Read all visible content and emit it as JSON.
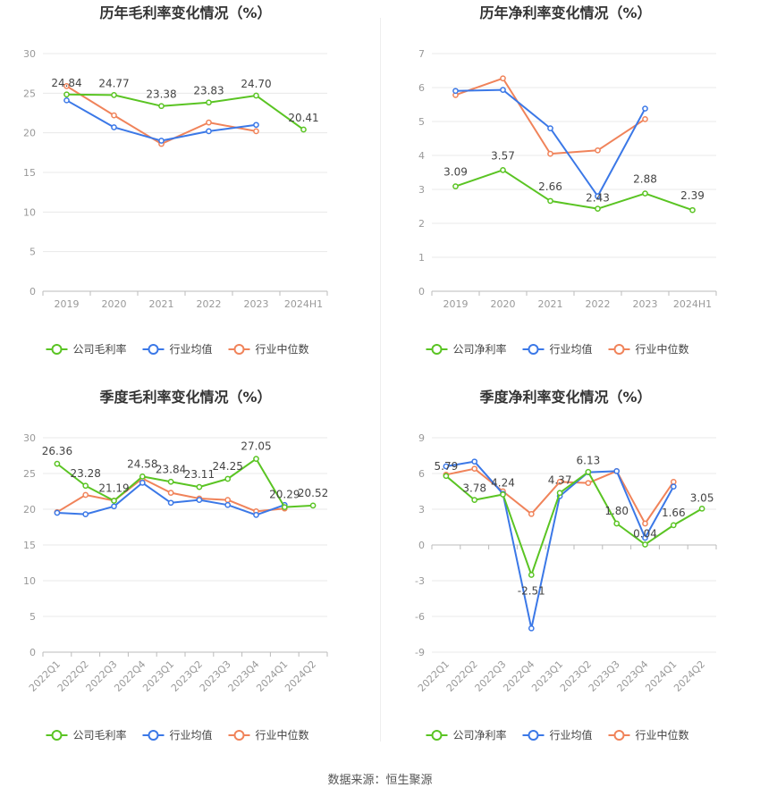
{
  "source": "数据来源：恒生聚源",
  "colors": {
    "company": "#5ac423",
    "avg": "#3b78e7",
    "median": "#f0835a",
    "grid": "#e8e8e8",
    "axis": "#999999",
    "text": "#444444",
    "title": "#333333"
  },
  "chart_data": [
    {
      "type": "line",
      "title": "历年毛利率变化情况（%）",
      "categories": [
        "2019",
        "2020",
        "2021",
        "2022",
        "2023",
        "2024H1"
      ],
      "ylim": [
        0,
        30
      ],
      "yticks": [
        0,
        5,
        10,
        15,
        20,
        25,
        30
      ],
      "series": [
        {
          "name": "公司毛利率",
          "key": "company",
          "values": [
            24.84,
            24.77,
            23.38,
            23.83,
            24.7,
            20.41
          ],
          "labels": true
        },
        {
          "name": "行业均值",
          "key": "avg",
          "values": [
            24.1,
            20.7,
            19.0,
            20.2,
            21.0,
            null
          ],
          "labels": false
        },
        {
          "name": "行业中位数",
          "key": "median",
          "values": [
            25.9,
            22.2,
            18.6,
            21.3,
            20.2,
            null
          ],
          "labels": false
        }
      ],
      "legend": "bottom",
      "grid": true
    },
    {
      "type": "line",
      "title": "历年净利率变化情况（%）",
      "categories": [
        "2019",
        "2020",
        "2021",
        "2022",
        "2023",
        "2024H1"
      ],
      "ylim": [
        0,
        7
      ],
      "yticks": [
        0,
        1,
        2,
        3,
        4,
        5,
        6,
        7
      ],
      "series": [
        {
          "name": "公司净利率",
          "key": "company",
          "values": [
            3.09,
            3.57,
            2.66,
            2.43,
            2.88,
            2.39
          ],
          "labels": true
        },
        {
          "name": "行业均值",
          "key": "avg",
          "values": [
            5.9,
            5.93,
            4.8,
            2.8,
            5.38,
            null
          ],
          "labels": false
        },
        {
          "name": "行业中位数",
          "key": "median",
          "values": [
            5.78,
            6.27,
            4.05,
            4.15,
            5.07,
            null
          ],
          "labels": false
        }
      ],
      "legend": "bottom",
      "grid": true
    },
    {
      "type": "line",
      "title": "季度毛利率变化情况（%）",
      "categories": [
        "2022Q1",
        "2022Q2",
        "2022Q3",
        "2022Q4",
        "2023Q1",
        "2023Q2",
        "2023Q3",
        "2023Q4",
        "2024Q1",
        "2024Q2"
      ],
      "ylim": [
        0,
        30
      ],
      "yticks": [
        0,
        5,
        10,
        15,
        20,
        25,
        30
      ],
      "series": [
        {
          "name": "公司毛利率",
          "key": "company",
          "values": [
            26.36,
            23.28,
            21.19,
            24.58,
            23.84,
            23.11,
            24.25,
            27.05,
            20.29,
            20.52
          ],
          "labels": true
        },
        {
          "name": "行业均值",
          "key": "avg",
          "values": [
            19.5,
            19.3,
            20.4,
            23.7,
            20.9,
            21.3,
            20.6,
            19.2,
            20.6,
            null
          ],
          "labels": false
        },
        {
          "name": "行业中位数",
          "key": "median",
          "values": [
            19.6,
            22.0,
            21.2,
            24.3,
            22.3,
            21.5,
            21.3,
            19.7,
            20.1,
            null
          ],
          "labels": false
        }
      ],
      "legend": "bottom",
      "grid": true
    },
    {
      "type": "line",
      "title": "季度净利率变化情况（%）",
      "categories": [
        "2022Q1",
        "2022Q2",
        "2022Q3",
        "2022Q4",
        "2023Q1",
        "2023Q2",
        "2023Q3",
        "2023Q4",
        "2024Q1",
        "2024Q2"
      ],
      "ylim": [
        -9,
        9
      ],
      "yticks": [
        -9,
        -6,
        -3,
        0,
        3,
        6,
        9
      ],
      "series": [
        {
          "name": "公司净利率",
          "key": "company",
          "values": [
            5.79,
            3.78,
            4.24,
            -2.51,
            4.37,
            6.13,
            1.8,
            0.04,
            1.66,
            3.05
          ],
          "labels": true
        },
        {
          "name": "行业均值",
          "key": "avg",
          "values": [
            6.6,
            7.0,
            4.3,
            -7.0,
            4.1,
            6.1,
            6.2,
            0.6,
            4.9,
            null
          ],
          "labels": false
        },
        {
          "name": "行业中位数",
          "key": "median",
          "values": [
            5.9,
            6.4,
            4.5,
            2.6,
            5.3,
            5.2,
            6.2,
            1.8,
            5.3,
            null
          ],
          "labels": false
        }
      ],
      "legend": "bottom",
      "grid": true
    }
  ]
}
